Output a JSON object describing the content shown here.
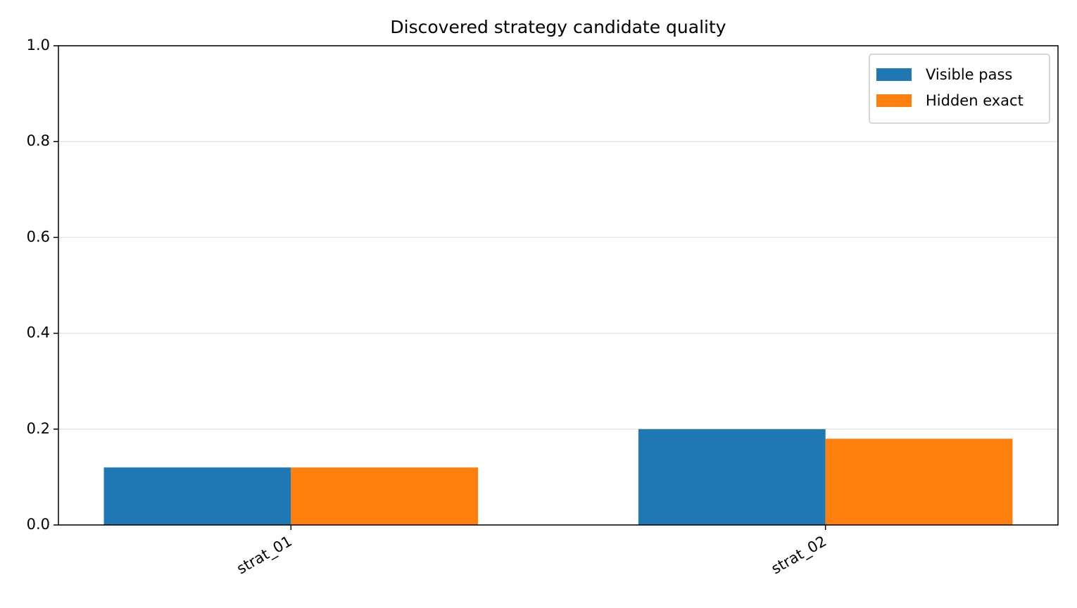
{
  "chart_data": {
    "type": "bar",
    "title": "Discovered strategy candidate quality",
    "categories": [
      "strat_01",
      "strat_02"
    ],
    "series": [
      {
        "name": "Visible pass",
        "color": "#1f77b4",
        "values": [
          0.12,
          0.2
        ]
      },
      {
        "name": "Hidden exact",
        "color": "#ff7f0e",
        "values": [
          0.12,
          0.18
        ]
      }
    ],
    "ylim": [
      0,
      1
    ],
    "yticks": [
      {
        "value": 0,
        "label": "0.0"
      },
      0.2,
      0.4,
      0.6,
      0.8,
      {
        "value": 1,
        "label": "1.0"
      }
    ],
    "grid": true,
    "legend": "upper right"
  }
}
